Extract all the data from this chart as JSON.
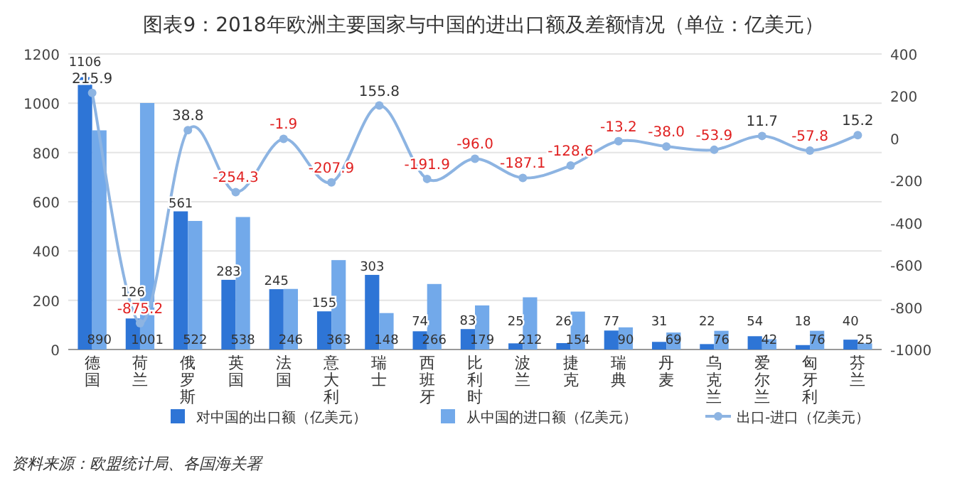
{
  "chart_data": {
    "type": "bar",
    "title": "图表9：2018年欧洲主要国家与中国的进出口额及差额情况（单位：亿美元）",
    "categories": [
      "德国",
      "荷兰",
      "俄罗斯",
      "英国",
      "法国",
      "意大利",
      "瑞士",
      "西班牙",
      "比利时",
      "波兰",
      "捷克",
      "瑞典",
      "丹麦",
      "乌克兰",
      "爱尔兰",
      "匈牙利",
      "芬兰"
    ],
    "series": [
      {
        "name": "对中国的出口额（亿美元）",
        "color": "#2e75d6",
        "values": [
          1106,
          126,
          561,
          283,
          245,
          155,
          303,
          74,
          83,
          25,
          26,
          77,
          31,
          22,
          54,
          18,
          40
        ],
        "value_labels": [
          "1106",
          "126",
          "561",
          "283",
          "245",
          "155",
          "303",
          "74",
          "83",
          "25",
          "26",
          "77",
          "31",
          "22",
          "54",
          "18",
          "40"
        ]
      },
      {
        "name": "从中国的进口额（亿美元）",
        "color": "#72a9ea",
        "values": [
          890,
          1001,
          522,
          538,
          246,
          363,
          148,
          266,
          179,
          212,
          154,
          90,
          69,
          76,
          42,
          76,
          25
        ],
        "value_labels": [
          "890",
          "1001",
          "522",
          "538",
          "246",
          "363",
          "148",
          "266",
          "179",
          "212",
          "154",
          "90",
          "69",
          "76",
          "42",
          "76",
          "25"
        ]
      },
      {
        "name": "出口-进口（亿美元）",
        "type": "line",
        "axis": "y2",
        "color": "#8db4e2",
        "values": [
          215.9,
          -875.2,
          38.8,
          -254.3,
          -1.9,
          -207.9,
          155.8,
          -191.9,
          -96.0,
          -187.1,
          -128.6,
          -13.2,
          -38.0,
          -53.9,
          11.7,
          -57.8,
          15.2
        ],
        "value_labels": [
          "215.9",
          "-875.2",
          "38.8",
          "-254.3",
          "-1.9",
          "-207.9",
          "155.8",
          "-191.9",
          "-96.0",
          "-187.1",
          "-128.6",
          "-13.2",
          "-38.0",
          "-53.9",
          "11.7",
          "-57.8",
          "15.2"
        ]
      }
    ],
    "ylim": [
      0,
      1200
    ],
    "yticks": [
      0,
      200,
      400,
      600,
      800,
      1000,
      1200
    ],
    "y2lim": [
      -1000,
      400
    ],
    "y2ticks": [
      -1000,
      -800,
      -600,
      -400,
      -200,
      0,
      200,
      400
    ],
    "grid": "y",
    "legend": "bottom",
    "marker": "circle",
    "annotations": [
      "资料来源：欧盟统计局、各国海关署"
    ]
  }
}
